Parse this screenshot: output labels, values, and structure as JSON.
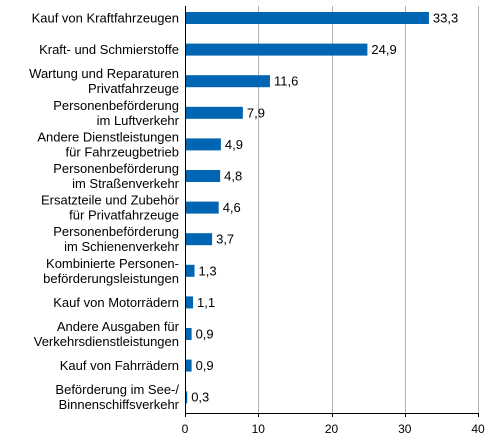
{
  "chart_data": {
    "type": "bar",
    "orientation": "horizontal",
    "categories": [
      [
        "Kauf von Kraftfahrzeugen"
      ],
      [
        "Kraft- und Schmierstoffe"
      ],
      [
        "Wartung und Reparaturen",
        "Privatfahrzeuge"
      ],
      [
        "Personenbeförderung",
        "im Luftverkehr"
      ],
      [
        "Andere Dienstleistungen",
        "für Fahrzeugbetrieb"
      ],
      [
        "Personenbeförderung",
        "im Straßenverkehr"
      ],
      [
        "Ersatzteile und Zubehör",
        "für Privatfahrzeuge"
      ],
      [
        "Personenbeförderung",
        "im Schienenverkehr"
      ],
      [
        "Kombinierte Personen-",
        "beförderungsleistungen"
      ],
      [
        "Kauf von Motorrädern"
      ],
      [
        "Andere Ausgaben für",
        "Verkehrsdienstleistungen"
      ],
      [
        "Kauf von Fahrrädern"
      ],
      [
        "Beförderung im See-/",
        "Binnenschiffsverkehr"
      ]
    ],
    "values": [
      33.3,
      24.9,
      11.6,
      7.9,
      4.9,
      4.8,
      4.6,
      3.7,
      1.3,
      1.1,
      0.9,
      0.9,
      0.3
    ],
    "value_labels": [
      "33,3",
      "24,9",
      "11,6",
      "7,9",
      "4,9",
      "4,8",
      "4,6",
      "3,7",
      "1,3",
      "1,1",
      "0,9",
      "0,9",
      "0,3"
    ],
    "xlim": [
      0,
      40
    ],
    "xticks": [
      0,
      10,
      20,
      30,
      40
    ],
    "xtick_labels": [
      "0",
      "10",
      "20",
      "30",
      "40"
    ],
    "title": "",
    "xlabel": "",
    "ylabel": "",
    "grid": "vertical",
    "bar_color": "#0066b3",
    "grid_color": "#b3b3b3"
  }
}
